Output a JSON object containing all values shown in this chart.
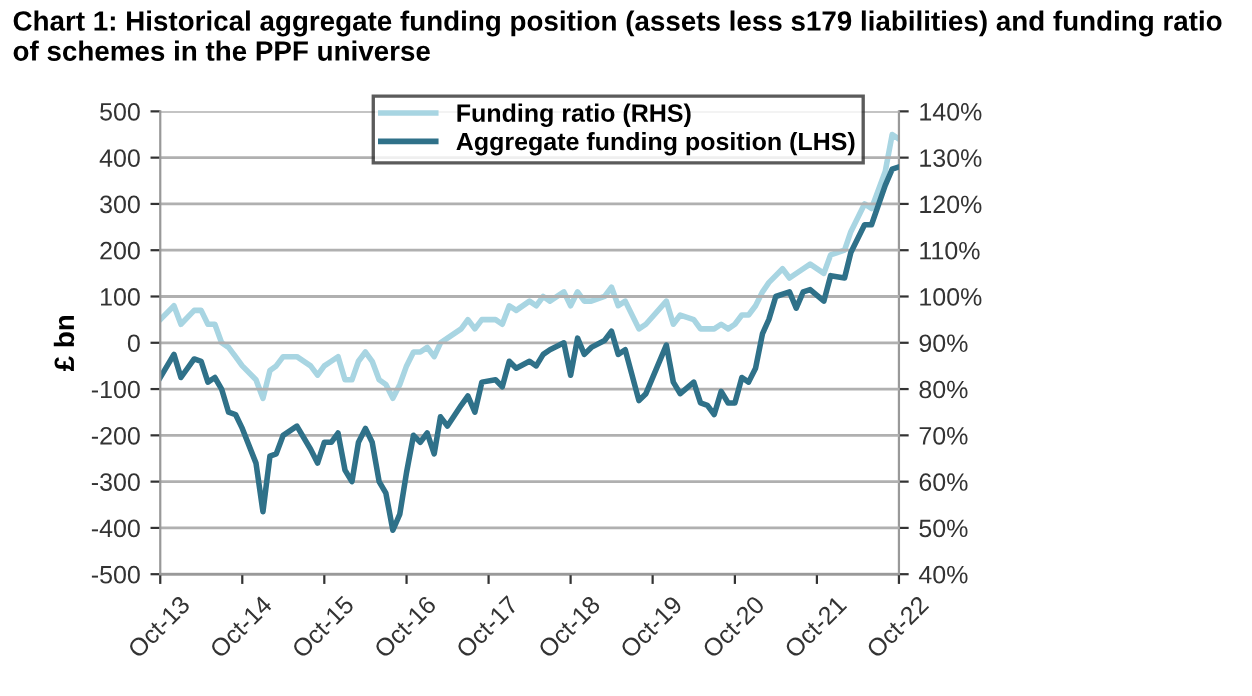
{
  "chart_data": {
    "type": "line",
    "title": "Chart 1: Historical aggregate funding position (assets less s179 liabilities) and funding ratio of schemes in the PPF universe",
    "ylabel": "£ bn",
    "xlim": [
      "2013-10",
      "2022-10"
    ],
    "xticks": [
      {
        "value": "2013-10",
        "label": "Oct-13"
      },
      {
        "value": "2014-10",
        "label": "Oct-14"
      },
      {
        "value": "2015-10",
        "label": "Oct-15"
      },
      {
        "value": "2016-10",
        "label": "Oct-16"
      },
      {
        "value": "2017-10",
        "label": "Oct-17"
      },
      {
        "value": "2018-10",
        "label": "Oct-18"
      },
      {
        "value": "2019-10",
        "label": "Oct-19"
      },
      {
        "value": "2020-10",
        "label": "Oct-20"
      },
      {
        "value": "2021-10",
        "label": "Oct-21"
      },
      {
        "value": "2022-10",
        "label": "Oct-22"
      }
    ],
    "ylim": [
      -500,
      500
    ],
    "yticks": [
      -500,
      -400,
      -300,
      -200,
      -100,
      0,
      100,
      200,
      300,
      400,
      500
    ],
    "y2lim": [
      40,
      140
    ],
    "y2ticks": [
      {
        "value": 40,
        "label": "40%"
      },
      {
        "value": 50,
        "label": "50%"
      },
      {
        "value": 60,
        "label": "60%"
      },
      {
        "value": 70,
        "label": "70%"
      },
      {
        "value": 80,
        "label": "80%"
      },
      {
        "value": 90,
        "label": "90%"
      },
      {
        "value": 100,
        "label": "100%"
      },
      {
        "value": 110,
        "label": "110%"
      },
      {
        "value": 120,
        "label": "120%"
      },
      {
        "value": 130,
        "label": "130%"
      },
      {
        "value": 140,
        "label": "140%"
      }
    ],
    "grid": "y",
    "legend": "top",
    "marker": "none",
    "series": [
      {
        "name": "Funding ratio (RHS)",
        "color": "#a8d5e2",
        "axis": "y2",
        "x": [
          "2013-10",
          "2013-12",
          "2014-01",
          "2014-03",
          "2014-04",
          "2014-05",
          "2014-06",
          "2014-07",
          "2014-08",
          "2014-09",
          "2014-10",
          "2014-12",
          "2015-01",
          "2015-02",
          "2015-03",
          "2015-04",
          "2015-06",
          "2015-08",
          "2015-09",
          "2015-10",
          "2015-11",
          "2015-12",
          "2016-01",
          "2016-02",
          "2016-03",
          "2016-04",
          "2016-05",
          "2016-06",
          "2016-07",
          "2016-08",
          "2016-09",
          "2016-10",
          "2016-11",
          "2016-12",
          "2017-01",
          "2017-02",
          "2017-03",
          "2017-04",
          "2017-06",
          "2017-07",
          "2017-08",
          "2017-09",
          "2017-11",
          "2017-12",
          "2018-01",
          "2018-02",
          "2018-04",
          "2018-05",
          "2018-06",
          "2018-07",
          "2018-09",
          "2018-10",
          "2018-11",
          "2018-12",
          "2019-01",
          "2019-03",
          "2019-04",
          "2019-05",
          "2019-06",
          "2019-08",
          "2019-09",
          "2019-12",
          "2020-01",
          "2020-02",
          "2020-04",
          "2020-05",
          "2020-07",
          "2020-08",
          "2020-09",
          "2020-10",
          "2020-11",
          "2020-12",
          "2021-01",
          "2021-02",
          "2021-03",
          "2021-05",
          "2021-06",
          "2021-08",
          "2021-09",
          "2021-11",
          "2021-12",
          "2022-02",
          "2022-03",
          "2022-05",
          "2022-06",
          "2022-08",
          "2022-09",
          "2022-10"
        ],
        "values": [
          95,
          98,
          94,
          97,
          97,
          94,
          94,
          90,
          89,
          87,
          85,
          82,
          78,
          84,
          85,
          87,
          87,
          85,
          83,
          85,
          86,
          87,
          82,
          82,
          86,
          88,
          86,
          82,
          81,
          78,
          81,
          85,
          88,
          88,
          89,
          87,
          90,
          91,
          93,
          95,
          93,
          95,
          95,
          94,
          98,
          97,
          99,
          98,
          100,
          99,
          101,
          98,
          101,
          99,
          99,
          100,
          102,
          98,
          99,
          93,
          94,
          99,
          94,
          96,
          95,
          93,
          93,
          94,
          93,
          94,
          96,
          96,
          98,
          101,
          103,
          106,
          104,
          106,
          107,
          105,
          109,
          110,
          114,
          120,
          119,
          127,
          135,
          134
        ]
      },
      {
        "name": "Aggregate funding position (LHS)",
        "color": "#2f7189",
        "axis": "y",
        "x": [
          "2013-10",
          "2013-12",
          "2014-01",
          "2014-03",
          "2014-04",
          "2014-05",
          "2014-06",
          "2014-07",
          "2014-08",
          "2014-09",
          "2014-10",
          "2014-12",
          "2015-01",
          "2015-02",
          "2015-03",
          "2015-04",
          "2015-06",
          "2015-08",
          "2015-09",
          "2015-10",
          "2015-11",
          "2015-12",
          "2016-01",
          "2016-02",
          "2016-03",
          "2016-04",
          "2016-05",
          "2016-06",
          "2016-07",
          "2016-08",
          "2016-09",
          "2016-10",
          "2016-11",
          "2016-12",
          "2017-01",
          "2017-02",
          "2017-03",
          "2017-04",
          "2017-06",
          "2017-07",
          "2017-08",
          "2017-09",
          "2017-11",
          "2017-12",
          "2018-01",
          "2018-02",
          "2018-04",
          "2018-05",
          "2018-06",
          "2018-07",
          "2018-09",
          "2018-10",
          "2018-11",
          "2018-12",
          "2019-01",
          "2019-03",
          "2019-04",
          "2019-05",
          "2019-06",
          "2019-08",
          "2019-09",
          "2019-12",
          "2020-01",
          "2020-02",
          "2020-04",
          "2020-05",
          "2020-06",
          "2020-07",
          "2020-08",
          "2020-09",
          "2020-10",
          "2020-11",
          "2020-12",
          "2021-01",
          "2021-02",
          "2021-03",
          "2021-04",
          "2021-06",
          "2021-07",
          "2021-08",
          "2021-09",
          "2021-11",
          "2021-12",
          "2022-02",
          "2022-03",
          "2022-05",
          "2022-06",
          "2022-08",
          "2022-09",
          "2022-10"
        ],
        "values": [
          -75,
          -25,
          -75,
          -35,
          -40,
          -85,
          -75,
          -100,
          -150,
          -155,
          -185,
          -260,
          -365,
          -245,
          -240,
          -200,
          -180,
          -230,
          -260,
          -215,
          -215,
          -195,
          -275,
          -300,
          -215,
          -185,
          -215,
          -300,
          -325,
          -405,
          -370,
          -280,
          -200,
          -215,
          -195,
          -240,
          -160,
          -180,
          -135,
          -115,
          -150,
          -85,
          -80,
          -95,
          -40,
          -55,
          -40,
          -50,
          -25,
          -15,
          0,
          -70,
          10,
          -25,
          -10,
          5,
          25,
          -25,
          -15,
          -125,
          -110,
          -5,
          -85,
          -110,
          -85,
          -130,
          -135,
          -155,
          -105,
          -130,
          -130,
          -75,
          -85,
          -55,
          20,
          50,
          100,
          110,
          75,
          110,
          115,
          90,
          145,
          140,
          195,
          255,
          255,
          340,
          375,
          380
        ]
      }
    ]
  }
}
